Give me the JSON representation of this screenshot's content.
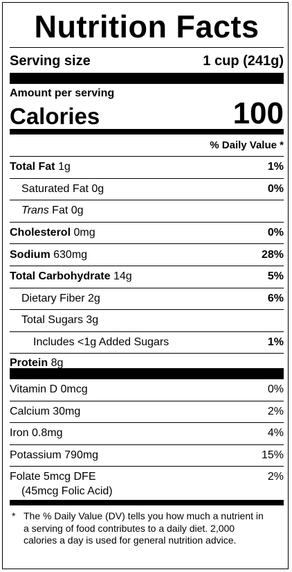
{
  "header": {
    "title": "Nutrition Facts",
    "serving_label": "Serving size",
    "serving_size": "1 cup (241g)"
  },
  "calories": {
    "caption": "Amount per serving",
    "label": "Calories",
    "value": "100"
  },
  "dv_header": "% Daily Value *",
  "nutrients": [
    {
      "name": "Total Fat",
      "amount": "1g",
      "dv": "1%"
    },
    {
      "name": "Saturated Fat 0g",
      "dv": "0%"
    },
    {
      "italic": "Trans",
      "name": "Fat 0g"
    },
    {
      "name": "Cholesterol",
      "amount": "0mg",
      "dv": "0%"
    },
    {
      "name": "Sodium",
      "amount": "630mg",
      "dv": "28%"
    },
    {
      "name": "Total Carbohydrate",
      "amount": "14g",
      "dv": "5%"
    },
    {
      "name": "Dietary Fiber 2g",
      "dv": "6%"
    },
    {
      "name": "Total Sugars 3g"
    },
    {
      "name": "Includes <1g Added Sugars",
      "dv": "1%"
    },
    {
      "name": "Protein",
      "amount": "8g"
    }
  ],
  "micronutrients": [
    {
      "name": "Vitamin D 0mcg",
      "dv": "0%"
    },
    {
      "name": "Calcium 30mg",
      "dv": "2%"
    },
    {
      "name": "Iron 0.8mg",
      "dv": "4%"
    },
    {
      "name": "Potassium 790mg",
      "dv": "15%"
    },
    {
      "name": "Folate 5mcg DFE",
      "note": "(45mcg Folic Acid)",
      "dv": "2%"
    }
  ],
  "footnote": "The % Daily Value (DV) tells you how much a nutrient in a serving of food contributes to a daily diet. 2,000 calories a day is used for general nutrition advice.",
  "footnote_marker": "*"
}
